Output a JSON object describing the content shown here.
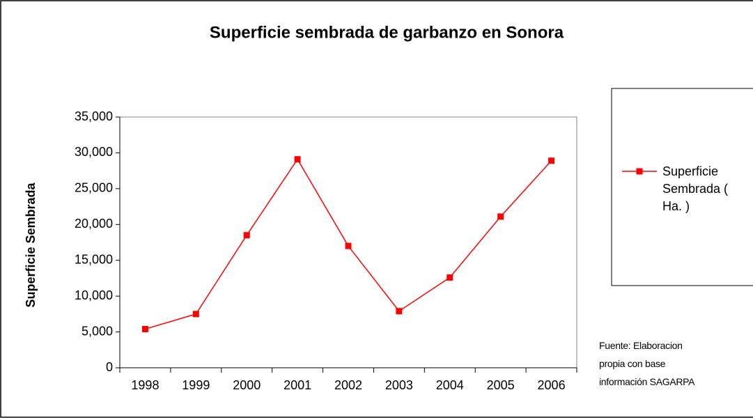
{
  "chart_data": {
    "type": "line",
    "title": "Superficie sembrada de garbanzo en Sonora",
    "y_label": "Superficie Sembrada",
    "categories": [
      "1998",
      "1999",
      "2000",
      "2001",
      "2002",
      "2003",
      "2004",
      "2005",
      "2006"
    ],
    "series": [
      {
        "name": "Superficie Sembrada ( Ha. )",
        "color": "#ff0000",
        "values": [
          5400,
          7500,
          18500,
          29100,
          17000,
          7900,
          12600,
          21100,
          28900
        ]
      }
    ],
    "ylim": [
      0,
      35000
    ],
    "yticks": [
      0,
      {
        "value": 5000,
        "label": "5,000"
      },
      {
        "value": 10000,
        "label": "10,000"
      },
      {
        "value": 15000,
        "label": "15,000"
      },
      {
        "value": 20000,
        "label": "20,000"
      },
      {
        "value": 25000,
        "label": "25,000"
      },
      {
        "value": 30000,
        "label": "30,000"
      },
      {
        "value": 35000,
        "label": "35,000"
      }
    ],
    "legend_position": "right",
    "annotation": "Fuente: Elaboracion propia con base información SAGARPA"
  }
}
